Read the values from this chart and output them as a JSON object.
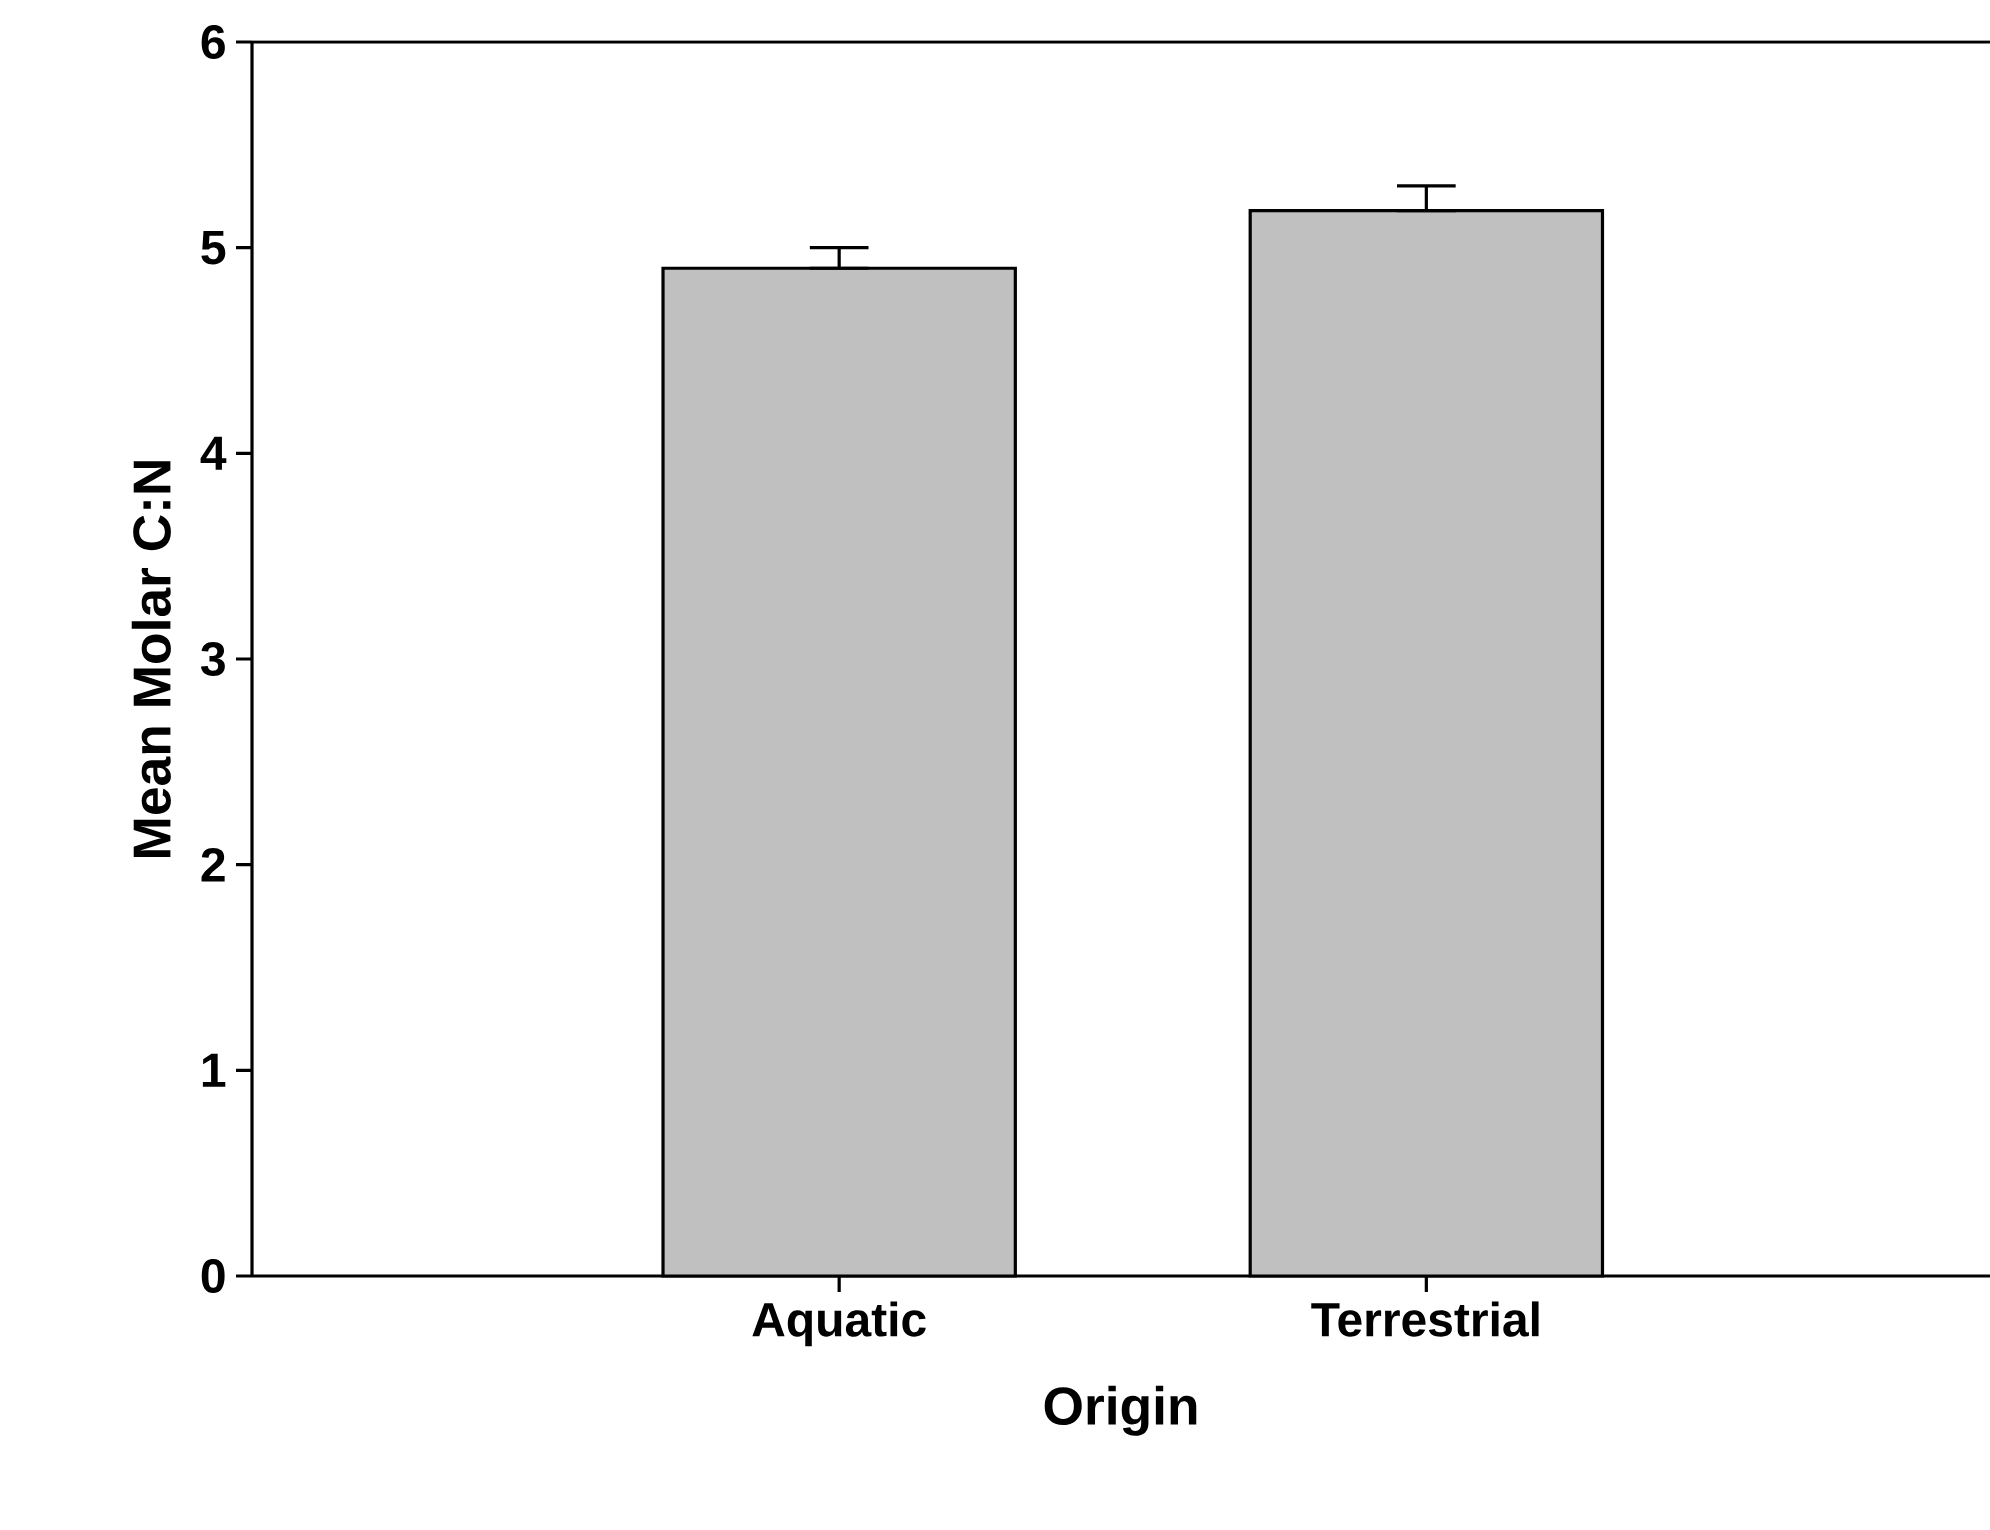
{
  "chart_data": {
    "type": "bar",
    "xlabel": "Origin",
    "ylabel": "Mean Molar C:N",
    "categories": [
      "Aquatic",
      "Terrestrial"
    ],
    "values": [
      4.9,
      5.18
    ],
    "errors": [
      [
        4.9,
        5.0
      ],
      [
        5.18,
        5.3
      ]
    ],
    "color": "#c0c0c0",
    "ylim": [
      0,
      6
    ],
    "yticks": [
      0,
      1,
      2,
      3,
      4,
      5,
      6
    ]
  }
}
